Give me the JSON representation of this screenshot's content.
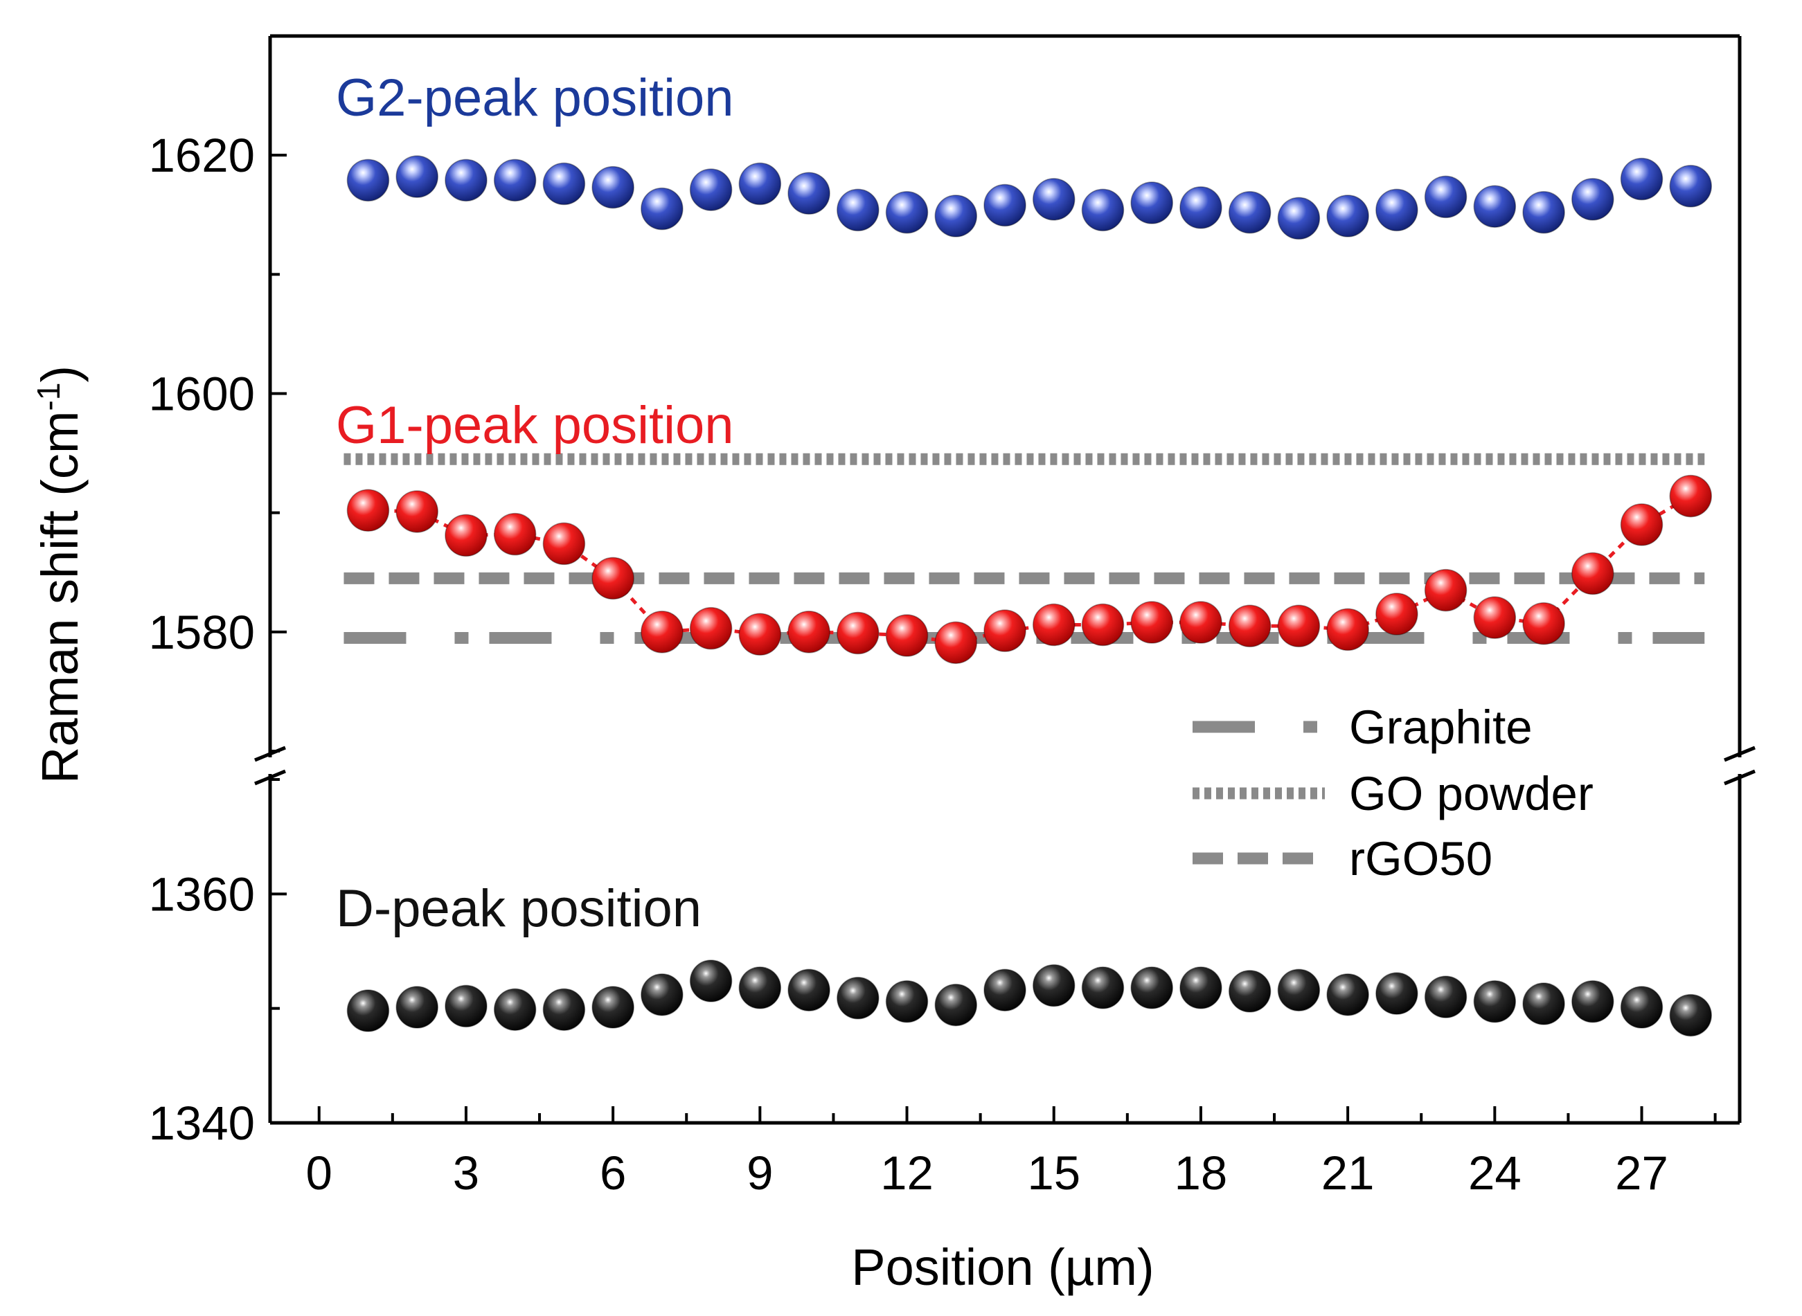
{
  "chart_data": {
    "type": "scatter",
    "xlabel": "Position (µm)",
    "ylabel_main": "Raman shift (cm",
    "ylabel_sup": "-1",
    "ylabel_close": ")",
    "xlim": [
      -1,
      29
    ],
    "x_ticks": [
      0,
      3,
      6,
      9,
      12,
      15,
      18,
      21,
      24,
      27
    ],
    "x_tick_labels": [
      "0",
      "3",
      "6",
      "9",
      "12",
      "15",
      "18",
      "21",
      "24",
      "27"
    ],
    "y_upper_range": [
      1570,
      1630
    ],
    "y_lower_range": [
      1340,
      1370
    ],
    "y_axis_break": true,
    "y_tick_labels": [
      {
        "value": 1620,
        "label": "1620"
      },
      {
        "value": 1600,
        "label": "1600"
      },
      {
        "value": 1580,
        "label": "1580"
      },
      {
        "value": 1360,
        "label": "1360"
      },
      {
        "value": 1340,
        "label": "1340"
      }
    ],
    "x": [
      1,
      2,
      3,
      4,
      5,
      6,
      7,
      8,
      9,
      10,
      11,
      12,
      13,
      14,
      15,
      16,
      17,
      18,
      19,
      20,
      21,
      22,
      23,
      24,
      25,
      26,
      27,
      28
    ],
    "series": [
      {
        "name": "G2-peak position",
        "annotation": "G2-peak position",
        "color": "#1b3a9a",
        "connected": false,
        "values": [
          1617.9,
          1618.2,
          1617.9,
          1617.9,
          1617.6,
          1617.3,
          1615.5,
          1617.1,
          1617.6,
          1616.8,
          1615.4,
          1615.2,
          1614.9,
          1615.8,
          1616.3,
          1615.4,
          1616.0,
          1615.6,
          1615.2,
          1614.7,
          1614.9,
          1615.4,
          1616.5,
          1615.7,
          1615.2,
          1616.3,
          1618.0,
          1617.4
        ]
      },
      {
        "name": "G1-peak position",
        "annotation": "G1-peak position",
        "color": "#e81c22",
        "connected": true,
        "values": [
          1590.2,
          1590.1,
          1588.1,
          1588.2,
          1587.4,
          1584.5,
          1580.0,
          1580.3,
          1579.8,
          1580.0,
          1579.9,
          1579.7,
          1579.1,
          1580.1,
          1580.6,
          1580.6,
          1580.8,
          1580.8,
          1580.5,
          1580.5,
          1580.2,
          1581.5,
          1583.5,
          1581.2,
          1580.7,
          1584.9,
          1589.0,
          1591.4
        ]
      },
      {
        "name": "D-peak position",
        "annotation": "D-peak position",
        "color": "#111111",
        "connected": false,
        "values": [
          1349.8,
          1350.1,
          1350.2,
          1349.9,
          1349.9,
          1350.1,
          1351.2,
          1352.4,
          1351.8,
          1351.6,
          1350.9,
          1350.6,
          1350.3,
          1351.6,
          1352.0,
          1351.8,
          1351.8,
          1351.8,
          1351.5,
          1351.6,
          1351.2,
          1351.3,
          1351.0,
          1350.6,
          1350.4,
          1350.6,
          1350.1,
          1349.4
        ]
      }
    ],
    "reference_lines": [
      {
        "name": "Graphite",
        "value": 1579.5,
        "style": "dash-dot",
        "color": "#8a8a8a"
      },
      {
        "name": "GO powder",
        "value": 1594.5,
        "style": "dotted",
        "color": "#8a8a8a"
      },
      {
        "name": "rGO50",
        "value": 1584.5,
        "style": "dashed",
        "color": "#8a8a8a"
      }
    ],
    "legend": {
      "position": "bottom-right",
      "entries": [
        "Graphite",
        "GO powder",
        "rGO50"
      ]
    }
  }
}
